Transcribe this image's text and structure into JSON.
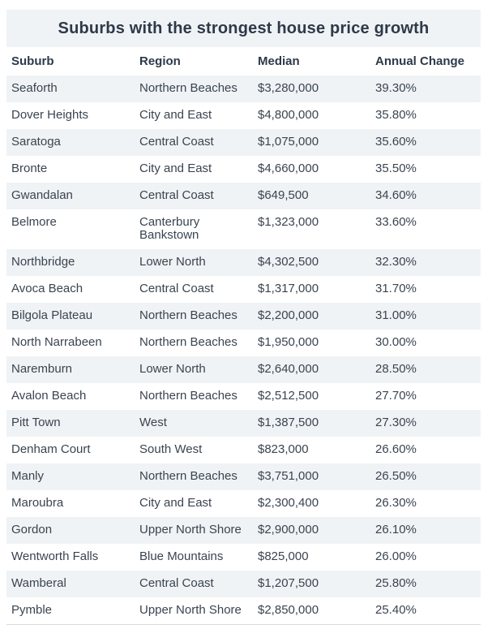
{
  "colors": {
    "title_bar_bg": "#f0f3f5",
    "row_stripe_bg": "#f0f3f5",
    "text": "#3a4450",
    "heading_text": "#2e3949",
    "bottom_border": "#d9dcde",
    "page_bg": "#ffffff"
  },
  "chart_data": {
    "type": "table",
    "title": "Suburbs with the strongest house price growth",
    "columns": [
      "Suburb",
      "Region",
      "Median",
      "Annual Change"
    ],
    "rows": [
      [
        "Seaforth",
        "Northern Beaches",
        "$3,280,000",
        "39.30%"
      ],
      [
        "Dover Heights",
        "City and East",
        "$4,800,000",
        "35.80%"
      ],
      [
        "Saratoga",
        "Central Coast",
        "$1,075,000",
        "35.60%"
      ],
      [
        "Bronte",
        "City and East",
        "$4,660,000",
        "35.50%"
      ],
      [
        "Gwandalan",
        "Central Coast",
        "$649,500",
        "34.60%"
      ],
      [
        "Belmore",
        "Canterbury Bankstown",
        "$1,323,000",
        "33.60%"
      ],
      [
        "Northbridge",
        "Lower North",
        "$4,302,500",
        "32.30%"
      ],
      [
        "Avoca Beach",
        "Central Coast",
        "$1,317,000",
        "31.70%"
      ],
      [
        "Bilgola Plateau",
        "Northern Beaches",
        "$2,200,000",
        "31.00%"
      ],
      [
        "North Narrabeen",
        "Northern Beaches",
        "$1,950,000",
        "30.00%"
      ],
      [
        "Naremburn",
        "Lower North",
        "$2,640,000",
        "28.50%"
      ],
      [
        "Avalon Beach",
        "Northern Beaches",
        "$2,512,500",
        "27.70%"
      ],
      [
        "Pitt Town",
        "West",
        "$1,387,500",
        "27.30%"
      ],
      [
        "Denham Court",
        "South West",
        "$823,000",
        "26.60%"
      ],
      [
        "Manly",
        "Northern Beaches",
        "$3,751,000",
        "26.50%"
      ],
      [
        "Maroubra",
        "City and East",
        "$2,300,400",
        "26.30%"
      ],
      [
        "Gordon",
        "Upper North Shore",
        "$2,900,000",
        "26.10%"
      ],
      [
        "Wentworth Falls",
        "Blue Mountains",
        "$825,000",
        "26.00%"
      ],
      [
        "Wamberal",
        "Central Coast",
        "$1,207,500",
        "25.80%"
      ],
      [
        "Pymble",
        "Upper North Shore",
        "$2,850,000",
        "25.40%"
      ]
    ],
    "layout": {
      "striped_rows": "odd",
      "grid": false,
      "legend_position": "none"
    }
  }
}
